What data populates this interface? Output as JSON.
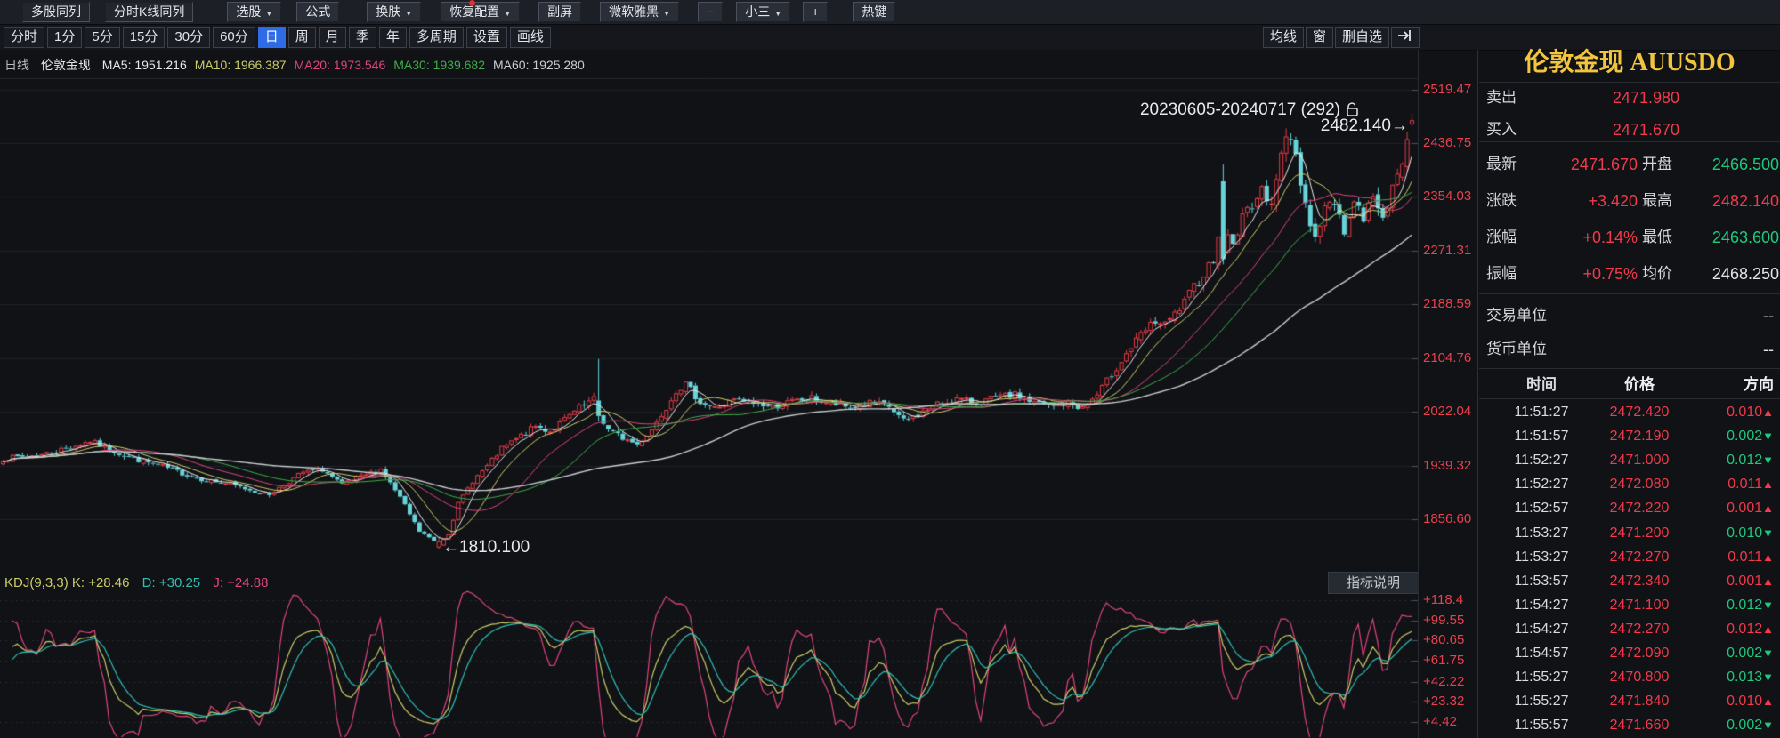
{
  "menu_bar": {
    "items": [
      {
        "label": "多股同列",
        "dropdown": false,
        "pressed": true,
        "gap": 25
      },
      {
        "label": "分时K线同列",
        "dropdown": false,
        "pressed": true,
        "gap": 17
      },
      {
        "label": "选股",
        "dropdown": true,
        "pressed": false,
        "gap": 38
      },
      {
        "label": "公式",
        "dropdown": false,
        "pressed": false,
        "gap": 17
      },
      {
        "label": "换肤",
        "dropdown": true,
        "pressed": false,
        "gap": 31
      },
      {
        "label": "恢复配置",
        "dropdown": true,
        "pressed": false,
        "gap": 22
      },
      {
        "label": "副屏",
        "dropdown": false,
        "pressed": false,
        "gap": 21
      },
      {
        "label": "微软雅黑",
        "dropdown": true,
        "pressed": false,
        "gap": 21
      },
      {
        "label": "−",
        "dropdown": false,
        "pressed": false,
        "gap": 21
      },
      {
        "label": "小三",
        "dropdown": true,
        "pressed": false,
        "gap": 15
      },
      {
        "label": "+",
        "dropdown": false,
        "pressed": false,
        "gap": 14
      },
      {
        "label": "热键",
        "dropdown": false,
        "pressed": false,
        "gap": 28
      }
    ]
  },
  "toolbar": {
    "periods": [
      {
        "label": "分时",
        "selected": false
      },
      {
        "label": "1分",
        "selected": false
      },
      {
        "label": "5分",
        "selected": false
      },
      {
        "label": "15分",
        "selected": false
      },
      {
        "label": "30分",
        "selected": false
      },
      {
        "label": "60分",
        "selected": false
      },
      {
        "label": "日",
        "selected": true
      },
      {
        "label": "周",
        "selected": false
      },
      {
        "label": "月",
        "selected": false
      },
      {
        "label": "季",
        "selected": false
      },
      {
        "label": "年",
        "selected": false
      },
      {
        "label": "多周期",
        "selected": false
      },
      {
        "label": "设置",
        "selected": false
      },
      {
        "label": "画线",
        "selected": false
      }
    ],
    "right_items": [
      "均线",
      "窗",
      "删自选"
    ],
    "jump_icon": "tab-jump-arrow"
  },
  "instrument": {
    "title": "伦敦金现 AUUSDO"
  },
  "legend": {
    "period_label": "日线",
    "symbol": "伦敦金现"
  },
  "kdj_header": {
    "name_k": "KDJ(9,3,3) K: +28.46",
    "d": "D: +30.25",
    "j": "J: +24.88"
  },
  "annotations": {
    "range_label": "20230605-20240717 (292)",
    "high_label": "2482.140→",
    "low_label": "←1810.100"
  },
  "indicator_button": {
    "label": "指标说明"
  },
  "quote": {
    "sell": {
      "label": "卖出",
      "value": "2471.980",
      "color": "red"
    },
    "buy": {
      "label": "买入",
      "value": "2471.670",
      "color": "red"
    },
    "stats": [
      [
        {
          "label": "最新",
          "value": "2471.670",
          "color": "red"
        },
        {
          "label": "开盘",
          "value": "2466.500",
          "color": "green"
        }
      ],
      [
        {
          "label": "涨跌",
          "value": "+3.420",
          "color": "red"
        },
        {
          "label": "最高",
          "value": "2482.140",
          "color": "red"
        }
      ],
      [
        {
          "label": "涨幅",
          "value": "+0.14%",
          "color": "red"
        },
        {
          "label": "最低",
          "value": "2463.600",
          "color": "green"
        }
      ],
      [
        {
          "label": "振幅",
          "value": "+0.75%",
          "color": "red"
        },
        {
          "label": "均价",
          "value": "2468.250",
          "color": "white"
        }
      ]
    ],
    "units": [
      {
        "label": "交易单位",
        "value": "--"
      },
      {
        "label": "货币单位",
        "value": "--"
      }
    ]
  },
  "tick_table": {
    "headers": [
      "时间",
      "价格",
      "方向"
    ],
    "rows": [
      [
        "11:51:27",
        "2472.420",
        "0.010",
        "up"
      ],
      [
        "11:51:57",
        "2472.190",
        "0.002",
        "down"
      ],
      [
        "11:52:27",
        "2471.000",
        "0.012",
        "down"
      ],
      [
        "11:52:27",
        "2472.080",
        "0.011",
        "up"
      ],
      [
        "11:52:57",
        "2472.220",
        "0.001",
        "up"
      ],
      [
        "11:53:27",
        "2471.200",
        "0.010",
        "down"
      ],
      [
        "11:53:27",
        "2472.270",
        "0.011",
        "up"
      ],
      [
        "11:53:57",
        "2472.340",
        "0.001",
        "up"
      ],
      [
        "11:54:27",
        "2471.100",
        "0.012",
        "down"
      ],
      [
        "11:54:27",
        "2472.270",
        "0.012",
        "up"
      ],
      [
        "11:54:57",
        "2472.090",
        "0.002",
        "down"
      ],
      [
        "11:55:27",
        "2470.800",
        "0.013",
        "down"
      ],
      [
        "11:55:27",
        "2471.840",
        "0.010",
        "up"
      ],
      [
        "11:55:57",
        "2471.660",
        "0.002",
        "down"
      ]
    ]
  },
  "chart_data": {
    "type": "candlestick",
    "title": "伦敦金现 日线",
    "date_range": "20230605-20240717",
    "bar_count": 292,
    "y_axis": {
      "tick_labels": [
        "2519.47",
        "2436.75",
        "2354.03",
        "2271.31",
        "2188.59",
        "2104.76",
        "2022.04",
        "1939.32",
        "1856.60"
      ],
      "tick_values": [
        2519.47,
        2436.75,
        2354.03,
        2271.31,
        2188.59,
        2104.76,
        2022.04,
        1939.32,
        1856.6
      ]
    },
    "extremes": {
      "period_high": 2482.14,
      "period_low": 1810.1
    },
    "today_ohlc": {
      "open": 2466.5,
      "high": 2482.14,
      "low": 2463.6,
      "close": 2471.67
    },
    "close_path_anchors": [
      [
        0,
        1950
      ],
      [
        8,
        1956
      ],
      [
        14,
        1968
      ],
      [
        18,
        1977
      ],
      [
        22,
        1964
      ],
      [
        27,
        1950
      ],
      [
        33,
        1938
      ],
      [
        40,
        1920
      ],
      [
        46,
        1912
      ],
      [
        52,
        1900
      ],
      [
        55,
        1895
      ],
      [
        58,
        1910
      ],
      [
        62,
        1929
      ],
      [
        66,
        1933
      ],
      [
        70,
        1909
      ],
      [
        74,
        1922
      ],
      [
        78,
        1934
      ],
      [
        82,
        1890
      ],
      [
        86,
        1838
      ],
      [
        90,
        1818
      ],
      [
        92,
        1835
      ],
      [
        94,
        1880
      ],
      [
        97,
        1916
      ],
      [
        100,
        1938
      ],
      [
        103,
        1965
      ],
      [
        106,
        1980
      ],
      [
        110,
        2000
      ],
      [
        113,
        1992
      ],
      [
        116,
        2010
      ],
      [
        119,
        2028
      ],
      [
        122,
        2041
      ],
      [
        123,
        2018
      ],
      [
        125,
        1995
      ],
      [
        128,
        1982
      ],
      [
        131,
        1972
      ],
      [
        134,
        1995
      ],
      [
        137,
        2030
      ],
      [
        139,
        2056
      ],
      [
        141,
        2064
      ],
      [
        144,
        2038
      ],
      [
        147,
        2028
      ],
      [
        151,
        2040
      ],
      [
        155,
        2036
      ],
      [
        159,
        2030
      ],
      [
        163,
        2038
      ],
      [
        167,
        2043
      ],
      [
        171,
        2035
      ],
      [
        175,
        2028
      ],
      [
        179,
        2036
      ],
      [
        183,
        2030
      ],
      [
        186,
        2008
      ],
      [
        189,
        2018
      ],
      [
        193,
        2034
      ],
      [
        197,
        2042
      ],
      [
        201,
        2036
      ],
      [
        205,
        2044
      ],
      [
        209,
        2048
      ],
      [
        213,
        2036
      ],
      [
        217,
        2030
      ],
      [
        220,
        2036
      ],
      [
        223,
        2028
      ],
      [
        226,
        2048
      ],
      [
        229,
        2080
      ],
      [
        232,
        2112
      ],
      [
        235,
        2140
      ],
      [
        238,
        2162
      ],
      [
        240,
        2155
      ],
      [
        242,
        2172
      ],
      [
        244,
        2190
      ],
      [
        246,
        2215
      ],
      [
        248,
        2236
      ],
      [
        250,
        2260
      ],
      [
        251,
        2300
      ],
      [
        252,
        2258
      ],
      [
        253,
        2300
      ],
      [
        254,
        2280
      ],
      [
        255,
        2300
      ],
      [
        256,
        2322
      ],
      [
        258,
        2345
      ],
      [
        260,
        2360
      ],
      [
        262,
        2352
      ],
      [
        264,
        2415
      ],
      [
        265,
        2442
      ],
      [
        266,
        2448
      ],
      [
        267,
        2420
      ],
      [
        268,
        2380
      ],
      [
        269,
        2345
      ],
      [
        270,
        2310
      ],
      [
        271,
        2292
      ],
      [
        272,
        2315
      ],
      [
        273,
        2335
      ],
      [
        274,
        2350
      ],
      [
        275,
        2338
      ],
      [
        276,
        2320
      ],
      [
        277,
        2305
      ],
      [
        278,
        2328
      ],
      [
        279,
        2342
      ],
      [
        280,
        2332
      ],
      [
        281,
        2320
      ],
      [
        282,
        2338
      ],
      [
        283,
        2352
      ],
      [
        284,
        2340
      ],
      [
        285,
        2330
      ],
      [
        286,
        2345
      ],
      [
        287,
        2362
      ],
      [
        288,
        2385
      ],
      [
        289,
        2410
      ],
      [
        290,
        2442
      ],
      [
        291,
        2471.67
      ]
    ],
    "ma_series": [
      {
        "name": "MA5",
        "latest": "1951.216",
        "text": "MA5: 1951.216",
        "color": "#e8e8e8",
        "width": 1
      },
      {
        "name": "MA10",
        "latest": "1966.387",
        "text": "MA10: 1966.387",
        "color": "#cdcd68",
        "width": 1
      },
      {
        "name": "MA20",
        "latest": "1973.546",
        "text": "MA20: 1973.546",
        "color": "#e0447e",
        "width": 1
      },
      {
        "name": "MA30",
        "latest": "1939.682",
        "text": "MA30: 1939.682",
        "color": "#3fae49",
        "width": 1
      },
      {
        "name": "MA60",
        "latest": "1925.280",
        "text": "MA60: 1925.280",
        "color": "#c9ccd0",
        "width": 1.4
      }
    ],
    "colors": {
      "up": "#e23b44",
      "down": "#66d4d8",
      "grid": "#1e2127",
      "tick": "#4a505a",
      "bg": "#101216"
    },
    "sub_indicator": {
      "type": "KDJ",
      "params": "(9,3,3)",
      "k": 28.46,
      "d": 30.25,
      "j": 24.88,
      "axis_labels": [
        "+118.4",
        "+99.55",
        "+80.65",
        "+61.75",
        "+42.22",
        "+23.32",
        "+4.42"
      ],
      "axis_values": [
        118.4,
        99.55,
        80.65,
        61.75,
        42.22,
        23.32,
        4.42
      ],
      "line_colors": {
        "K": "#cdcd68",
        "D": "#2fbfb3",
        "J": "#e0447e"
      }
    }
  }
}
